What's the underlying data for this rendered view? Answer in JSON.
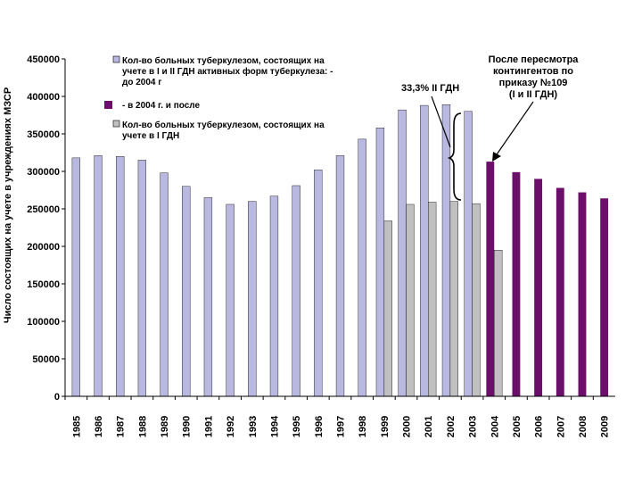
{
  "chart_data": {
    "type": "bar",
    "ylabel": "Число состоящих на учете в учреждениях МЗСР",
    "ylim": [
      0,
      450000
    ],
    "yticks": [
      0,
      50000,
      100000,
      150000,
      200000,
      250000,
      300000,
      350000,
      400000,
      450000
    ],
    "ytick_labels": [
      "0",
      "50000",
      "100000",
      "150000",
      "200000",
      "250000",
      "300000",
      "350000",
      "400000",
      "450000"
    ],
    "categories": [
      "1985",
      "1986",
      "1987",
      "1988",
      "1989",
      "1990",
      "1991",
      "1992",
      "1993",
      "1994",
      "1995",
      "1996",
      "1997",
      "1998",
      "1999",
      "2000",
      "2001",
      "2002",
      "2003",
      "2004",
      "2005",
      "2006",
      "2007",
      "2008",
      "2009"
    ],
    "series": [
      {
        "name": "Кол-во больных туберкулезом, состоящих на учете в I и II ГДН активных форм туберкулеза: - до 2004 г",
        "color": "#b8b8e0",
        "values": [
          318000,
          321000,
          320000,
          315000,
          298000,
          280000,
          265000,
          256000,
          260000,
          267000,
          281000,
          302000,
          321000,
          343000,
          358000,
          382000,
          388000,
          389000,
          380000,
          null,
          null,
          null,
          null,
          null,
          null
        ]
      },
      {
        "name": "- в 2004 г. и после",
        "color": "#6b0f6b",
        "values": [
          null,
          null,
          null,
          null,
          null,
          null,
          null,
          null,
          null,
          null,
          null,
          null,
          null,
          null,
          null,
          null,
          null,
          null,
          null,
          313000,
          299000,
          290000,
          278000,
          272000,
          264000
        ]
      },
      {
        "name": "Кол-во больных туберкулезом, состоящих на учете в I ГДН",
        "color": "#c0c0c0",
        "values": [
          null,
          null,
          null,
          null,
          null,
          null,
          null,
          null,
          null,
          null,
          null,
          null,
          null,
          null,
          234000,
          256000,
          259000,
          260000,
          257000,
          195000,
          null,
          null,
          null,
          null,
          null
        ]
      }
    ],
    "annotations": [
      "33,3% II ГДН",
      "После пересмотра контингентов по приказу №109 (I и II ГДН)"
    ]
  },
  "legend": {
    "item1_lines": [
      "Кол-во больных туберкулезом, состоящих на",
      "учете в I и II ГДН активных форм туберкулеза: -",
      "до 2004 г"
    ],
    "item2": "- в 2004 г. и после",
    "item3_lines": [
      "Кол-во больных туберкулезом, состоящих на",
      "учете в I ГДН"
    ]
  },
  "notes": {
    "percent": "33,3% II ГДН",
    "revision_lines": [
      "После пересмотра",
      "контингентов по",
      "приказу №109",
      "(I и II ГДН)"
    ]
  }
}
